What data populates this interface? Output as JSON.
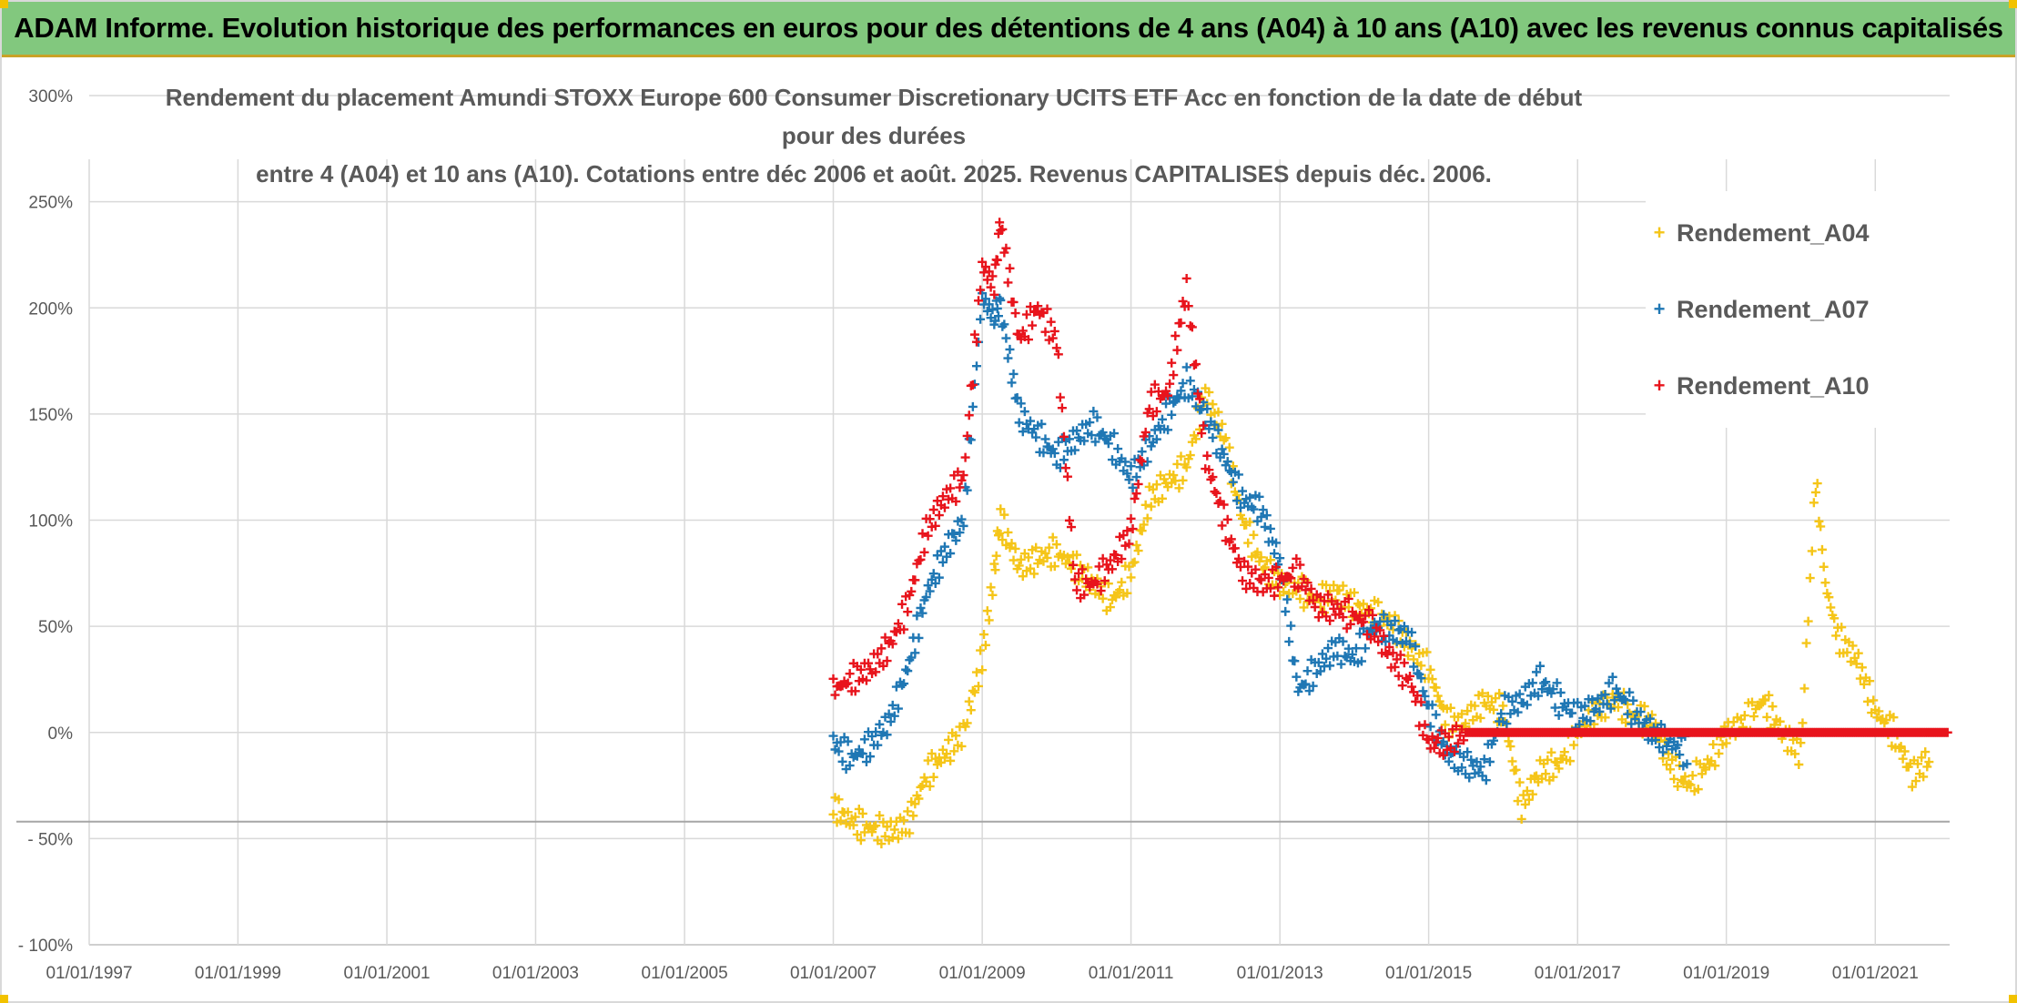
{
  "header": {
    "banner_title": "ADAM Informe. Evolution historique des performances en euros pour des détentions de 4 ans (A04) à 10 ans (A10) avec les revenus connus capitalisés"
  },
  "chart_data": {
    "type": "scatter",
    "title_line1": "Rendement du placement Amundi STOXX Europe 600 Consumer Discretionary UCITS ETF Acc en fonction de la date de début pour des durées",
    "title_line2": "entre 4 (A04) et 10 ans (A10). Cotations entre déc 2006 et août. 2025. Revenus CAPITALISES depuis déc. 2006.",
    "xlabel": "",
    "ylabel": "",
    "x_range": [
      "1997-01-01",
      "2022-01-01"
    ],
    "ylim": [
      -100,
      300
    ],
    "y_ticks": [
      -100,
      -50,
      0,
      50,
      100,
      150,
      200,
      250,
      300
    ],
    "y_tick_labels": [
      "- 100%",
      "- 50%",
      "0%",
      "50%",
      "100%",
      "150%",
      "200%",
      "250%",
      "300%"
    ],
    "x_ticks": [
      "1997-01-01",
      "1999-01-01",
      "2001-01-01",
      "2003-01-01",
      "2005-01-01",
      "2007-01-01",
      "2009-01-01",
      "2011-01-01",
      "2013-01-01",
      "2015-01-01",
      "2017-01-01",
      "2019-01-01",
      "2021-01-01"
    ],
    "x_tick_labels": [
      "01/01/1997",
      "01/01/1999",
      "01/01/2001",
      "01/01/2003",
      "01/01/2005",
      "01/01/2007",
      "01/01/2009",
      "01/01/2011",
      "01/01/2013",
      "01/01/2015",
      "01/01/2017",
      "01/01/2019",
      "01/01/2021"
    ],
    "reference_line_y": -42,
    "grid": true,
    "legend_position": "top-right",
    "marker": "plus",
    "series": [
      {
        "name": "Rendement_A04",
        "color": "#f5c518",
        "points": [
          [
            "2007-01-01",
            -35
          ],
          [
            "2007-04-01",
            -42
          ],
          [
            "2007-07-01",
            -45
          ],
          [
            "2007-10-01",
            -47
          ],
          [
            "2008-01-01",
            -43
          ],
          [
            "2008-04-01",
            -20
          ],
          [
            "2008-07-01",
            -10
          ],
          [
            "2008-10-01",
            0
          ],
          [
            "2009-01-01",
            35
          ],
          [
            "2009-03-01",
            75
          ],
          [
            "2009-04-01",
            100
          ],
          [
            "2009-07-01",
            78
          ],
          [
            "2009-10-01",
            82
          ],
          [
            "2010-01-01",
            85
          ],
          [
            "2010-04-01",
            78
          ],
          [
            "2010-07-01",
            70
          ],
          [
            "2010-10-01",
            62
          ],
          [
            "2011-01-01",
            75
          ],
          [
            "2011-04-01",
            110
          ],
          [
            "2011-07-01",
            118
          ],
          [
            "2011-10-01",
            125
          ],
          [
            "2012-01-01",
            160
          ],
          [
            "2012-04-01",
            140
          ],
          [
            "2012-07-01",
            100
          ],
          [
            "2012-10-01",
            80
          ],
          [
            "2013-01-01",
            70
          ],
          [
            "2013-04-01",
            68
          ],
          [
            "2013-07-01",
            62
          ],
          [
            "2013-10-01",
            66
          ],
          [
            "2014-01-01",
            60
          ],
          [
            "2014-04-01",
            56
          ],
          [
            "2014-07-01",
            52
          ],
          [
            "2014-10-01",
            40
          ],
          [
            "2015-01-01",
            30
          ],
          [
            "2015-04-01",
            5
          ],
          [
            "2015-07-01",
            5
          ],
          [
            "2015-10-01",
            15
          ],
          [
            "2016-01-01",
            10
          ],
          [
            "2016-04-01",
            -35
          ],
          [
            "2016-07-01",
            -18
          ],
          [
            "2016-10-01",
            -15
          ],
          [
            "2017-01-01",
            0
          ],
          [
            "2017-04-01",
            10
          ],
          [
            "2017-07-01",
            15
          ],
          [
            "2017-10-01",
            8
          ],
          [
            "2018-01-01",
            5
          ],
          [
            "2018-04-01",
            -15
          ],
          [
            "2018-07-01",
            -25
          ],
          [
            "2018-10-01",
            -15
          ],
          [
            "2019-01-01",
            0
          ],
          [
            "2019-04-01",
            5
          ],
          [
            "2019-07-01",
            15
          ],
          [
            "2019-10-01",
            0
          ],
          [
            "2020-01-01",
            -10
          ],
          [
            "2020-03-15",
            120
          ],
          [
            "2020-05-01",
            70
          ],
          [
            "2020-07-01",
            45
          ],
          [
            "2020-10-01",
            35
          ],
          [
            "2021-01-01",
            10
          ],
          [
            "2021-04-01",
            0
          ],
          [
            "2021-07-01",
            -20
          ],
          [
            "2021-10-01",
            -12
          ]
        ]
      },
      {
        "name": "Rendement_A07",
        "color": "#1f77b4",
        "points": [
          [
            "2007-01-01",
            -5
          ],
          [
            "2007-04-01",
            -12
          ],
          [
            "2007-07-01",
            -6
          ],
          [
            "2007-10-01",
            5
          ],
          [
            "2008-01-01",
            30
          ],
          [
            "2008-04-01",
            65
          ],
          [
            "2008-07-01",
            85
          ],
          [
            "2008-10-01",
            100
          ],
          [
            "2009-01-01",
            205
          ],
          [
            "2009-03-01",
            195
          ],
          [
            "2009-04-01",
            200
          ],
          [
            "2009-07-01",
            150
          ],
          [
            "2009-10-01",
            140
          ],
          [
            "2010-01-01",
            130
          ],
          [
            "2010-04-01",
            138
          ],
          [
            "2010-07-01",
            145
          ],
          [
            "2010-10-01",
            135
          ],
          [
            "2011-01-01",
            120
          ],
          [
            "2011-04-01",
            135
          ],
          [
            "2011-07-01",
            150
          ],
          [
            "2011-10-01",
            165
          ],
          [
            "2012-01-01",
            150
          ],
          [
            "2012-04-01",
            130
          ],
          [
            "2012-07-01",
            110
          ],
          [
            "2012-10-01",
            105
          ],
          [
            "2013-01-01",
            80
          ],
          [
            "2013-04-01",
            20
          ],
          [
            "2013-07-01",
            30
          ],
          [
            "2013-10-01",
            40
          ],
          [
            "2014-01-01",
            35
          ],
          [
            "2014-04-01",
            50
          ],
          [
            "2014-07-01",
            48
          ],
          [
            "2014-10-01",
            45
          ],
          [
            "2015-01-01",
            10
          ],
          [
            "2015-04-01",
            -10
          ],
          [
            "2015-07-01",
            -15
          ],
          [
            "2015-10-01",
            -18
          ],
          [
            "2016-01-01",
            10
          ],
          [
            "2016-04-01",
            15
          ],
          [
            "2016-07-01",
            25
          ],
          [
            "2016-10-01",
            15
          ],
          [
            "2017-01-01",
            8
          ],
          [
            "2017-04-01",
            12
          ],
          [
            "2017-07-01",
            20
          ],
          [
            "2017-10-01",
            10
          ],
          [
            "2018-01-01",
            0
          ],
          [
            "2018-04-01",
            -5
          ],
          [
            "2018-07-01",
            -10
          ]
        ]
      },
      {
        "name": "Rendement_A10",
        "color": "#e8141c",
        "points": [
          [
            "2007-01-01",
            20
          ],
          [
            "2007-04-01",
            25
          ],
          [
            "2007-07-01",
            30
          ],
          [
            "2007-10-01",
            40
          ],
          [
            "2008-01-01",
            60
          ],
          [
            "2008-04-01",
            95
          ],
          [
            "2008-07-01",
            110
          ],
          [
            "2008-10-01",
            120
          ],
          [
            "2009-01-01",
            220
          ],
          [
            "2009-03-01",
            210
          ],
          [
            "2009-04-01",
            240
          ],
          [
            "2009-07-01",
            185
          ],
          [
            "2009-10-01",
            200
          ],
          [
            "2010-01-01",
            185
          ],
          [
            "2010-04-01",
            70
          ],
          [
            "2010-07-01",
            70
          ],
          [
            "2010-10-01",
            80
          ],
          [
            "2011-01-01",
            95
          ],
          [
            "2011-04-01",
            155
          ],
          [
            "2011-07-01",
            160
          ],
          [
            "2011-10-01",
            210
          ],
          [
            "2012-01-01",
            130
          ],
          [
            "2012-04-01",
            100
          ],
          [
            "2012-07-01",
            75
          ],
          [
            "2012-10-01",
            70
          ],
          [
            "2013-01-01",
            72
          ],
          [
            "2013-04-01",
            75
          ],
          [
            "2013-07-01",
            60
          ],
          [
            "2013-10-01",
            58
          ],
          [
            "2014-01-01",
            55
          ],
          [
            "2014-04-01",
            50
          ],
          [
            "2014-07-01",
            35
          ],
          [
            "2014-10-01",
            25
          ],
          [
            "2015-01-01",
            -5
          ],
          [
            "2015-04-01",
            -5
          ],
          [
            "2015-07-01",
            0
          ],
          [
            "2016-01-01",
            0
          ],
          [
            "2017-01-01",
            0
          ],
          [
            "2018-01-01",
            0
          ],
          [
            "2019-01-01",
            0
          ],
          [
            "2020-01-01",
            0
          ],
          [
            "2021-01-01",
            0
          ],
          [
            "2021-12-31",
            0
          ]
        ]
      }
    ]
  }
}
